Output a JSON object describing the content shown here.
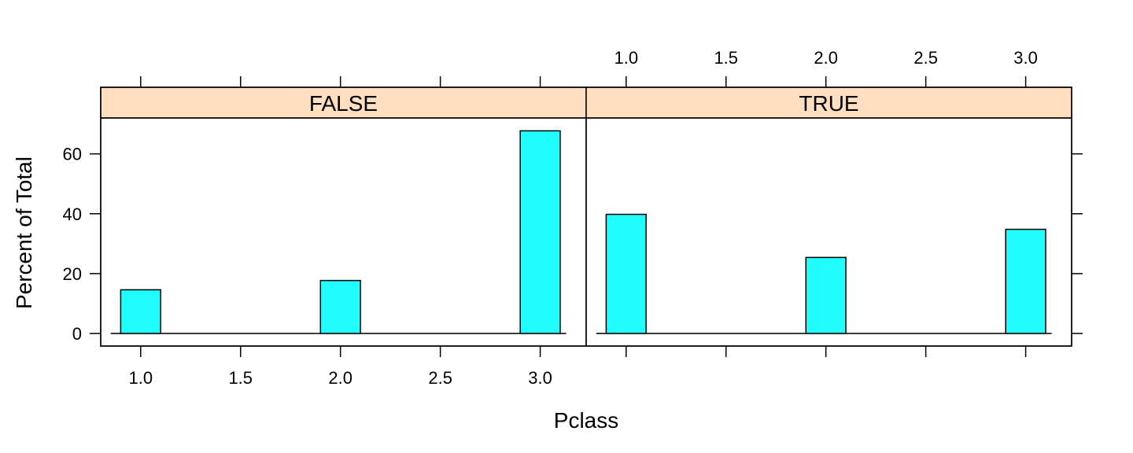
{
  "chart_data": {
    "type": "bar",
    "xlabel": "Pclass",
    "ylabel": "Percent of Total",
    "xlim": [
      0.8,
      3.23
    ],
    "ylim": [
      -4.2,
      72
    ],
    "x_ticks": [
      "1.0",
      "1.5",
      "2.0",
      "2.5",
      "3.0"
    ],
    "x_tick_values": [
      1.0,
      1.5,
      2.0,
      2.5,
      3.0
    ],
    "y_ticks": [
      "0",
      "20",
      "40",
      "60"
    ],
    "y_tick_values": [
      0,
      20,
      40,
      60
    ],
    "bar_halfwidth": 0.1,
    "panels": [
      {
        "label": "FALSE",
        "x": [
          1.0,
          2.0,
          3.0
        ],
        "values": [
          14.6,
          17.7,
          67.7
        ]
      },
      {
        "label": "TRUE",
        "x": [
          1.0,
          2.0,
          3.0
        ],
        "values": [
          39.8,
          25.4,
          34.8
        ]
      }
    ],
    "colors": {
      "bar": "#21fdfe",
      "strip": "#ffdfbf"
    }
  }
}
